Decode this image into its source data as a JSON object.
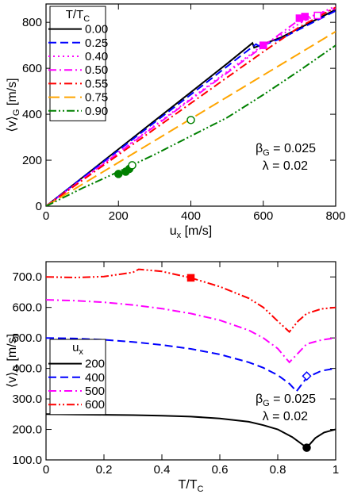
{
  "chart_data": [
    {
      "type": "line",
      "xlabel": "u",
      "xlabel_sub": "x",
      "xlabel_unit": "[m/s]",
      "ylabel": "⟨v⟩",
      "ylabel_sub": "G",
      "ylabel_unit": "[m/s]",
      "xlim": [
        0,
        800
      ],
      "ylim": [
        0,
        880
      ],
      "xticks": [
        0,
        200,
        400,
        600,
        800
      ],
      "yticks": [
        0,
        200,
        400,
        600,
        800
      ],
      "legend": {
        "placement": "top-left",
        "title": "T/T",
        "title_sub": "C"
      },
      "annotation": {
        "beta": "β",
        "beta_sub": "G",
        "beta_value": " = 0.025",
        "lambda": "λ = 0.02"
      },
      "series": [
        {
          "name": "0.00",
          "color": "#000000",
          "dash": "solid",
          "x": [
            0,
            100,
            200,
            300,
            400,
            500,
            570,
            575,
            600,
            650,
            700,
            750,
            800
          ],
          "y": [
            0,
            124,
            248,
            372,
            496,
            620,
            710,
            690,
            705,
            735,
            775,
            815,
            855
          ]
        },
        {
          "name": "0.25",
          "color": "#0000ff",
          "dash": "dashed",
          "x": [
            0,
            100,
            200,
            300,
            400,
            500,
            580,
            590,
            650,
            700,
            750,
            800
          ],
          "y": [
            0,
            122,
            243,
            365,
            486,
            608,
            705,
            695,
            730,
            770,
            810,
            850
          ]
        },
        {
          "name": "0.40",
          "color": "#ff00ff",
          "dash": "dotted",
          "x": [
            0,
            100,
            200,
            300,
            400,
            500,
            600,
            650,
            700,
            750,
            800
          ],
          "y": [
            0,
            117,
            234,
            351,
            468,
            585,
            702,
            745,
            795,
            835,
            870
          ]
        },
        {
          "name": "0.50",
          "color": "#ff00ff",
          "dash": "dashdot",
          "x": [
            0,
            100,
            200,
            300,
            400,
            500,
            600,
            700,
            750,
            800
          ],
          "y": [
            0,
            116,
            232,
            348,
            464,
            580,
            696,
            812,
            835,
            860
          ]
        },
        {
          "name": "0.55",
          "color": "#ff0000",
          "dash": "dashdot",
          "x": [
            0,
            100,
            200,
            300,
            400,
            500,
            600,
            700,
            800
          ],
          "y": [
            0,
            112,
            224,
            336,
            448,
            560,
            672,
            780,
            865
          ]
        },
        {
          "name": "0.75",
          "color": "#ffa500",
          "dash": "longdash",
          "x": [
            0,
            100,
            200,
            300,
            400,
            500,
            600,
            700,
            800
          ],
          "y": [
            0,
            95,
            190,
            285,
            380,
            475,
            570,
            665,
            760
          ]
        },
        {
          "name": "0.90",
          "color": "#008000",
          "dash": "dashdotdot",
          "x": [
            0,
            100,
            200,
            300,
            400,
            500,
            600,
            700,
            800
          ],
          "y": [
            0,
            78,
            150,
            225,
            305,
            385,
            485,
            590,
            700
          ]
        }
      ],
      "markers": [
        {
          "x": 200,
          "y": 140,
          "shape": "circle",
          "filled": true,
          "color": "#008000"
        },
        {
          "x": 220,
          "y": 150,
          "shape": "circle",
          "filled": true,
          "color": "#008000"
        },
        {
          "x": 230,
          "y": 162,
          "shape": "circle",
          "filled": true,
          "color": "#008000"
        },
        {
          "x": 238,
          "y": 178,
          "shape": "circle",
          "filled": false,
          "color": "#008000"
        },
        {
          "x": 400,
          "y": 375,
          "shape": "circle",
          "filled": false,
          "color": "#008000"
        },
        {
          "x": 600,
          "y": 700,
          "shape": "square",
          "filled": true,
          "color": "#ff00ff"
        },
        {
          "x": 700,
          "y": 818,
          "shape": "square",
          "filled": true,
          "color": "#ff00ff"
        },
        {
          "x": 715,
          "y": 825,
          "shape": "square",
          "filled": true,
          "color": "#ff00ff"
        },
        {
          "x": 750,
          "y": 830,
          "shape": "square",
          "filled": false,
          "color": "#ff00ff"
        }
      ]
    },
    {
      "type": "line",
      "xlabel": "T/T",
      "xlabel_sub": "C",
      "ylabel": "⟨v⟩",
      "ylabel_sub": "G",
      "ylabel_unit": "[m/s]",
      "xlim": [
        0,
        1
      ],
      "ylim": [
        100,
        750
      ],
      "xticks": [
        0,
        0.2,
        0.4,
        0.6,
        0.8,
        1
      ],
      "yticks": [
        100,
        200,
        300,
        400,
        500,
        600,
        700
      ],
      "legend": {
        "placement": "bottom-left",
        "title": "u",
        "title_sub": "x"
      },
      "annotation": {
        "beta": "β",
        "beta_sub": "G",
        "beta_value": " = 0.025",
        "lambda": "λ = 0.02"
      },
      "series": [
        {
          "name": "200",
          "color": "#000000",
          "dash": "solid",
          "x": [
            0,
            0.1,
            0.2,
            0.3,
            0.4,
            0.5,
            0.6,
            0.7,
            0.75,
            0.8,
            0.85,
            0.9,
            0.93,
            0.96,
            1.0
          ],
          "y": [
            250,
            249,
            248,
            247,
            245,
            242,
            236,
            225,
            214,
            200,
            175,
            140,
            172,
            190,
            200
          ]
        },
        {
          "name": "400",
          "color": "#0000ff",
          "dash": "dashed",
          "x": [
            0,
            0.1,
            0.2,
            0.3,
            0.4,
            0.5,
            0.6,
            0.7,
            0.75,
            0.8,
            0.84,
            0.865,
            0.9,
            0.95,
            1.0
          ],
          "y": [
            500,
            498,
            494,
            487,
            477,
            464,
            446,
            420,
            402,
            378,
            350,
            325,
            370,
            392,
            400
          ]
        },
        {
          "name": "500",
          "color": "#ff00ff",
          "dash": "dashdot",
          "x": [
            0,
            0.1,
            0.2,
            0.3,
            0.4,
            0.5,
            0.6,
            0.7,
            0.75,
            0.8,
            0.84,
            0.87,
            0.9,
            0.95,
            1.0
          ],
          "y": [
            625,
            622,
            617,
            608,
            596,
            580,
            558,
            525,
            500,
            465,
            420,
            450,
            480,
            493,
            500
          ]
        },
        {
          "name": "600",
          "color": "#ff0000",
          "dash": "dashdotdot",
          "x": [
            0,
            0.1,
            0.2,
            0.3,
            0.32,
            0.4,
            0.5,
            0.6,
            0.7,
            0.75,
            0.8,
            0.84,
            0.87,
            0.9,
            0.95,
            1.0
          ],
          "y": [
            700,
            698,
            701,
            715,
            725,
            718,
            697,
            668,
            630,
            600,
            555,
            520,
            555,
            580,
            595,
            600
          ]
        }
      ],
      "markers": [
        {
          "x": 0.5,
          "y": 697,
          "shape": "square",
          "filled": true,
          "color": "#ff0000"
        },
        {
          "x": 0.9,
          "y": 375,
          "shape": "diamond",
          "filled": false,
          "color": "#0000ff"
        },
        {
          "x": 0.9,
          "y": 140,
          "shape": "circle",
          "filled": true,
          "color": "#000000"
        }
      ]
    }
  ]
}
